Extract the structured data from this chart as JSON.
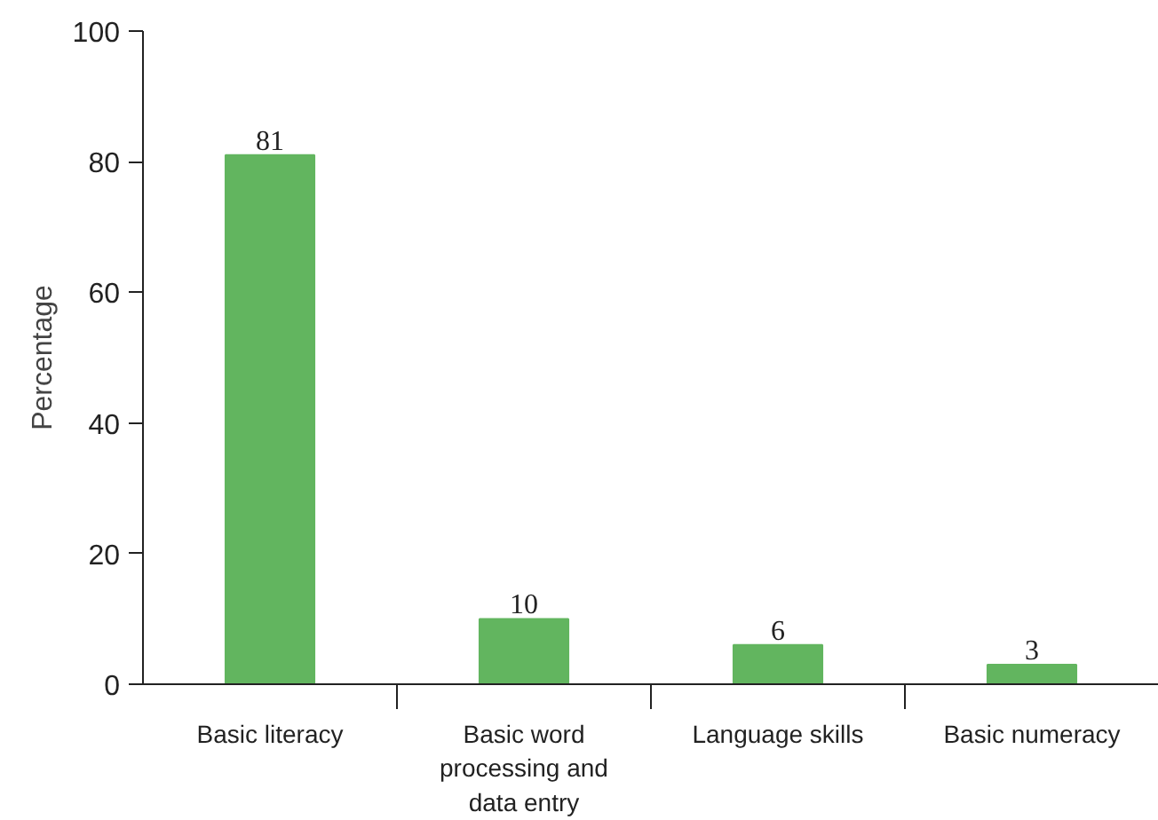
{
  "chart_data": {
    "type": "bar",
    "ylabel": "Percentage",
    "categories": [
      "Basic literacy",
      "Basic word processing and data entry",
      "Language skills",
      "Basic numeracy"
    ],
    "values": [
      81,
      10,
      6,
      3
    ],
    "color": "#62b55f",
    "ylim": [
      0,
      100
    ],
    "yticks": [
      0,
      20,
      40,
      60,
      80,
      100
    ],
    "grid": false,
    "data_labels": true
  }
}
